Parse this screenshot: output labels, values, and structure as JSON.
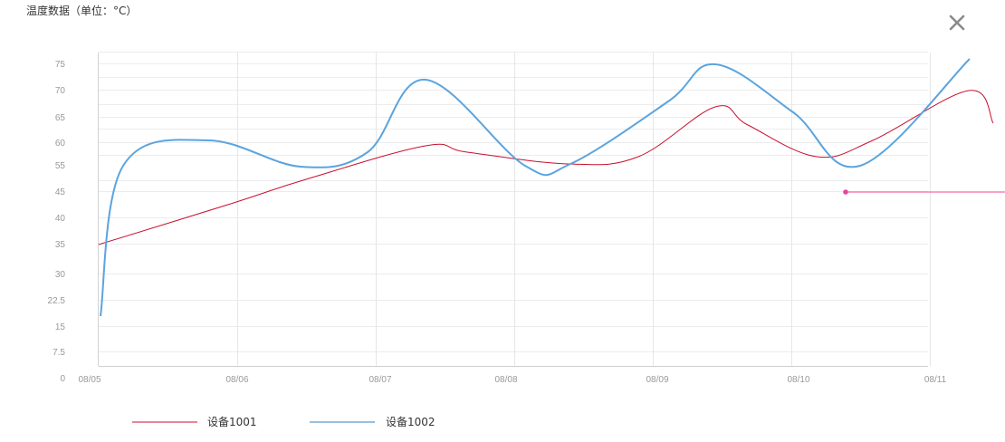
{
  "header": {
    "title": "温度数据（单位：°C）",
    "close_icon": "close-icon"
  },
  "chart_data": {
    "type": "line",
    "title": "温度数据（单位：°C）",
    "xlabel": "",
    "ylabel": "",
    "categories": [
      "08/05",
      "08/06",
      "08/07",
      "08/08",
      "08/09",
      "08/10",
      "08/11"
    ],
    "y_tick_labels": [
      "0",
      "7.5",
      "15",
      "22.5",
      "30",
      "35",
      "40",
      "45",
      "55",
      "60",
      "65",
      "70",
      "75"
    ],
    "grid": true,
    "legend_position": "bottom-left",
    "series": [
      {
        "name": "设备1001",
        "color": "#c8102e",
        "x": [
          "08/05",
          "08/06",
          "08/06",
          "08/07",
          "08/07",
          "08/08",
          "08/08",
          "08/09",
          "08/09",
          "08/10",
          "08/10",
          "08/11",
          "08/11"
        ],
        "values": [
          35,
          43,
          50,
          59.5,
          58,
          55.5,
          57,
          67,
          63.5,
          57,
          60.5,
          70,
          64
        ]
      },
      {
        "name": "设备1002",
        "color": "#5ba4de",
        "x": [
          "08/05",
          "08/05",
          "08/06",
          "08/06",
          "08/07",
          "08/07",
          "08/08",
          "08/08",
          "08/09",
          "08/09",
          "08/10",
          "08/10",
          "08/11"
        ],
        "values": [
          18,
          55,
          60.5,
          54.5,
          58,
          72,
          55,
          55.5,
          68,
          75,
          66,
          55,
          76
        ]
      }
    ],
    "annotations": [
      {
        "type": "marker-line",
        "x": "08/10",
        "y": 45,
        "color": "#f06aa8"
      }
    ]
  }
}
